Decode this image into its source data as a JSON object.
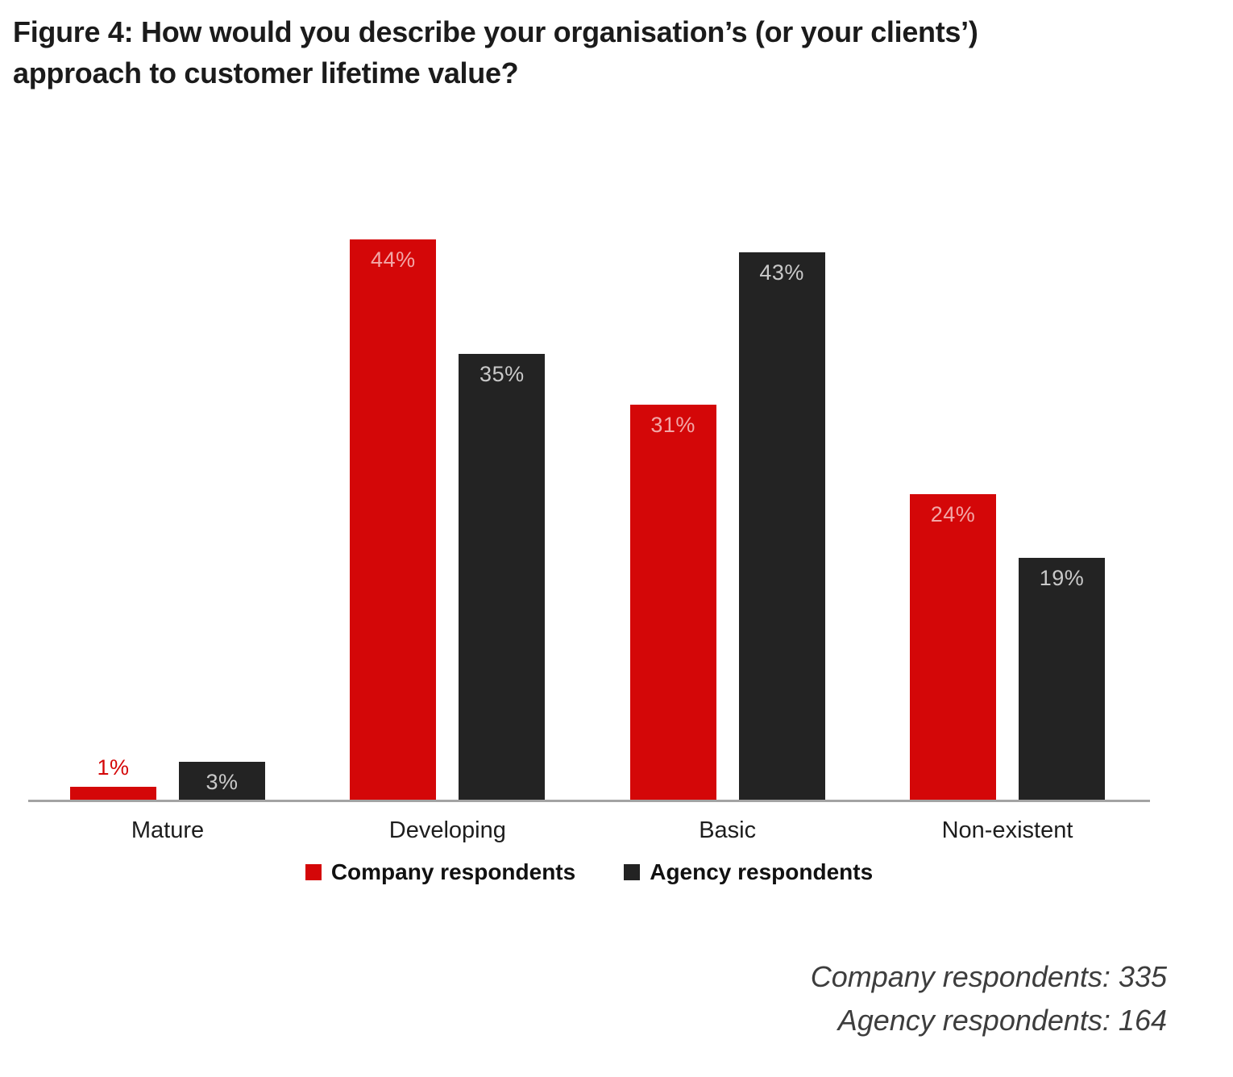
{
  "header": {
    "title_line1": "Figure 4: How would you describe your organisation’s (or your clients’)",
    "title_line2": "approach to customer lifetime value?"
  },
  "chart_data": {
    "type": "bar",
    "title": "Figure 4: How would you describe your organisation’s (or your clients’) approach to customer lifetime value?",
    "categories": [
      "Mature",
      "Developing",
      "Basic",
      "Non-existent"
    ],
    "series": [
      {
        "name": "Company respondents",
        "color": "#d40708",
        "label_color_inside": "#f2a6a6",
        "values": [
          1,
          44,
          31,
          24
        ]
      },
      {
        "name": "Agency respondents",
        "color": "#232323",
        "label_color_inside": "#c9c9c9",
        "values": [
          3,
          35,
          43,
          19
        ]
      }
    ],
    "value_suffix": "%",
    "xlabel": "",
    "ylabel": "",
    "ylim": [
      0,
      50
    ],
    "grid": false,
    "legend_position": "bottom",
    "axis_line_color": "#a3a3a3"
  },
  "footnotes": {
    "line1": "Company respondents: 335",
    "line2": "Agency respondents: 164"
  },
  "colors": {
    "title_text": "#1b1b1b",
    "category_label": "#1d1d1d",
    "legend_text": "#111111",
    "footnote_text": "#3d3d3d"
  }
}
